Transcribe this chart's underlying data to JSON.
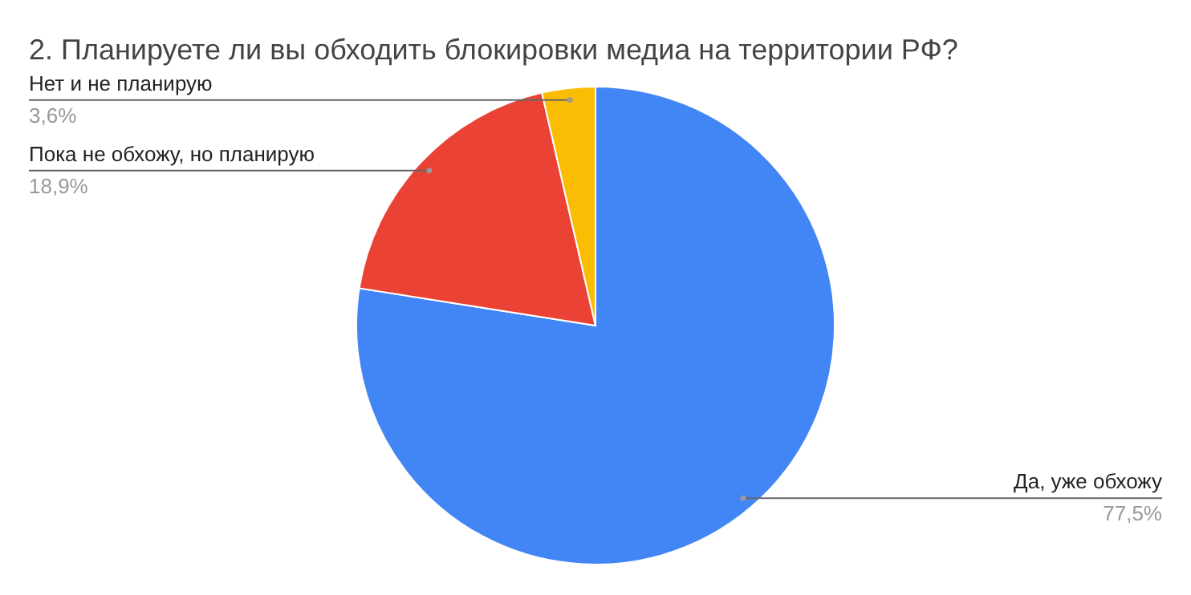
{
  "chart_data": {
    "type": "pie",
    "title": "2. Планируете ли вы обходить блокировки медиа на территории РФ?",
    "categories": [
      "Да, уже обхожу",
      "Пока не обхожу, но планирую",
      "Нет и не планирую"
    ],
    "values": [
      77.5,
      18.9,
      3.6
    ],
    "colors": [
      "#4285f4",
      "#ea4335",
      "#fbbc04"
    ],
    "value_labels": [
      "77,5%",
      "18,9%",
      "3,6%"
    ]
  }
}
